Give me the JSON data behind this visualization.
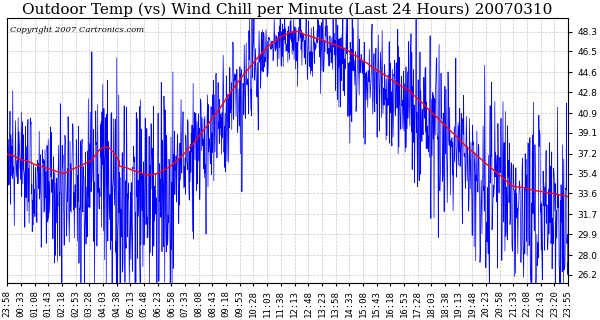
{
  "title": "Outdoor Temp (vs) Wind Chill per Minute (Last 24 Hours) 20070310",
  "copyright": "Copyright 2007 Cartronics.com",
  "ylabel_ticks": [
    26.2,
    28.0,
    29.9,
    31.7,
    33.6,
    35.4,
    37.2,
    39.1,
    40.9,
    42.8,
    44.6,
    46.5,
    48.3
  ],
  "ylim": [
    25.5,
    49.5
  ],
  "xtick_labels": [
    "23:58",
    "00:33",
    "01:08",
    "01:43",
    "02:18",
    "02:53",
    "03:28",
    "04:03",
    "04:38",
    "05:13",
    "05:48",
    "06:23",
    "06:58",
    "07:33",
    "08:08",
    "08:43",
    "09:18",
    "09:53",
    "10:28",
    "11:03",
    "11:38",
    "12:13",
    "12:48",
    "13:23",
    "13:58",
    "14:33",
    "15:08",
    "15:43",
    "16:18",
    "16:53",
    "17:28",
    "18:03",
    "18:38",
    "19:13",
    "19:48",
    "20:23",
    "20:58",
    "21:33",
    "22:08",
    "22:43",
    "23:20",
    "23:55"
  ],
  "blue_color": "#0000ff",
  "red_color": "#ff0000",
  "background_color": "#ffffff",
  "grid_color": "#bbbbbb",
  "title_fontsize": 11,
  "copyright_fontsize": 6,
  "tick_fontsize": 6.5
}
